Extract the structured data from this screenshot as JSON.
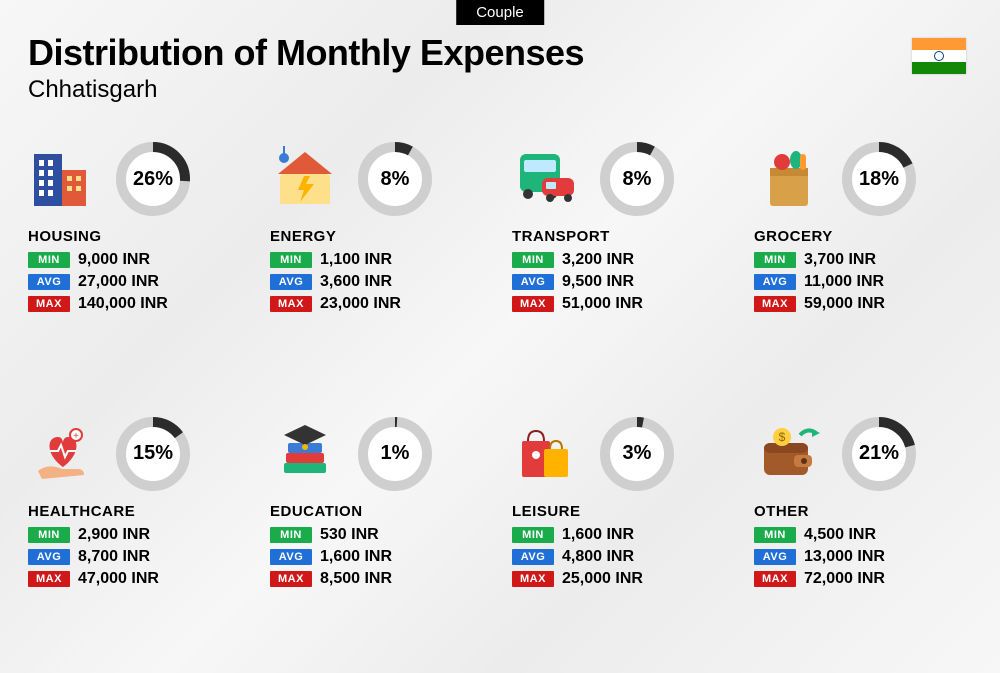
{
  "tab_label": "Couple",
  "title": "Distribution of Monthly Expenses",
  "subtitle": "Chhatisgarh",
  "flag": {
    "saffron": "#ff9933",
    "white": "#ffffff",
    "green": "#138808",
    "chakra": "#054187"
  },
  "currency_suffix": "INR",
  "chip_labels": {
    "min": "MIN",
    "avg": "AVG",
    "max": "MAX"
  },
  "colors": {
    "min_chip": "#1aab4b",
    "avg_chip": "#1f6fd6",
    "max_chip": "#d01818",
    "text": "#111111",
    "donut_track": "#cfcfcf",
    "donut_bg": "#ffffff",
    "donut_fill": "#2b2b2b"
  },
  "donut": {
    "size": 78,
    "radius": 32,
    "stroke": 10
  },
  "categories": [
    {
      "key": "housing",
      "name": "HOUSING",
      "pct": 26,
      "min": "9,000",
      "avg": "27,000",
      "max": "140,000",
      "icon": "buildings"
    },
    {
      "key": "energy",
      "name": "ENERGY",
      "pct": 8,
      "min": "1,100",
      "avg": "3,600",
      "max": "23,000",
      "icon": "house-bolt"
    },
    {
      "key": "transport",
      "name": "TRANSPORT",
      "pct": 8,
      "min": "3,200",
      "avg": "9,500",
      "max": "51,000",
      "icon": "bus-car"
    },
    {
      "key": "grocery",
      "name": "GROCERY",
      "pct": 18,
      "min": "3,700",
      "avg": "11,000",
      "max": "59,000",
      "icon": "grocery-bag"
    },
    {
      "key": "healthcare",
      "name": "HEALTHCARE",
      "pct": 15,
      "min": "2,900",
      "avg": "8,700",
      "max": "47,000",
      "icon": "heart-hand"
    },
    {
      "key": "education",
      "name": "EDUCATION",
      "pct": 1,
      "min": "530",
      "avg": "1,600",
      "max": "8,500",
      "icon": "books-cap"
    },
    {
      "key": "leisure",
      "name": "LEISURE",
      "pct": 3,
      "min": "1,600",
      "avg": "4,800",
      "max": "25,000",
      "icon": "shopping-bags"
    },
    {
      "key": "other",
      "name": "OTHER",
      "pct": 21,
      "min": "4,500",
      "avg": "13,000",
      "max": "72,000",
      "icon": "wallet-arrow"
    }
  ]
}
